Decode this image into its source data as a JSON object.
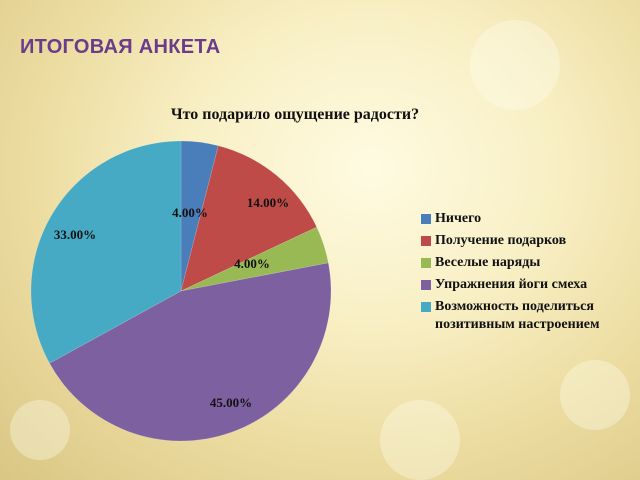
{
  "slide": {
    "title": "ИТОГОВАЯ АНКЕТА"
  },
  "chart_data": {
    "type": "pie",
    "title": "Что подарило ощущение радости?",
    "categories": [
      "Ничего",
      "Получение подарков",
      "Веселые наряды",
      "Упражнения йоги смеха",
      "Возможность поделиться позитивным настроением"
    ],
    "values": [
      4,
      14,
      4,
      45,
      33
    ],
    "data_labels": [
      "4.00%",
      "14.00%",
      "4.00%",
      "45.00%",
      "33.00%"
    ],
    "colors": [
      "#4a7ebb",
      "#be4b48",
      "#98b954",
      "#7d60a0",
      "#46aac5"
    ],
    "legend_position": "right"
  }
}
